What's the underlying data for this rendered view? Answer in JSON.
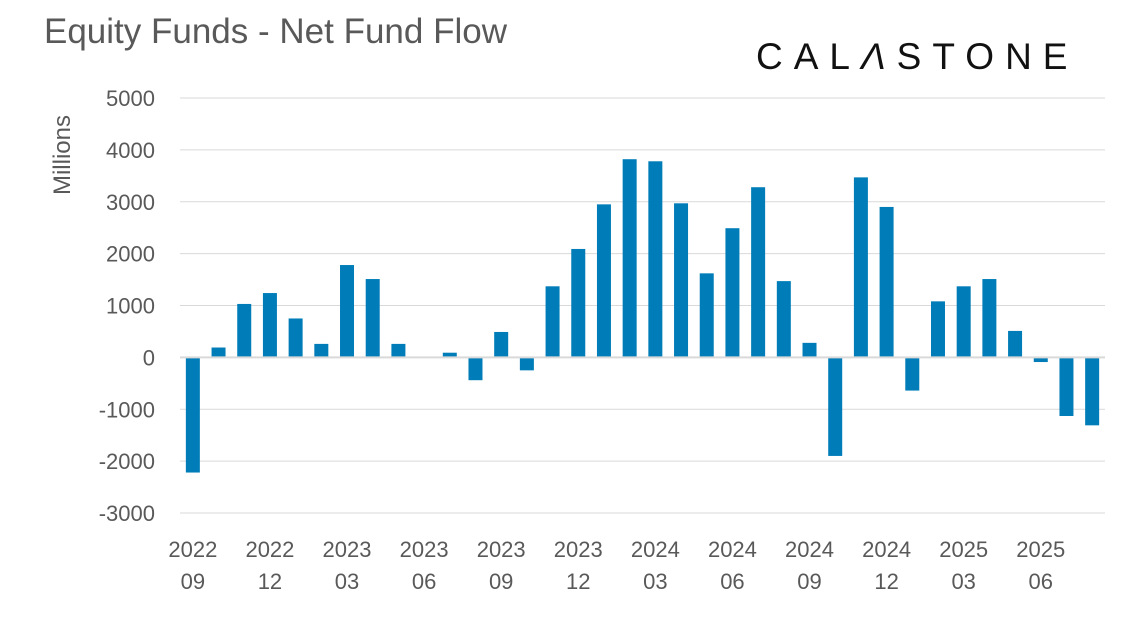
{
  "chart_data": {
    "type": "bar",
    "title": "Equity Funds - Net Fund Flow",
    "ylabel": "Millions",
    "xlabel": "",
    "ylim": [
      -3000,
      5000
    ],
    "yticks": [
      5000,
      4000,
      3000,
      2000,
      1000,
      0,
      -1000,
      -2000,
      -3000
    ],
    "grid": true,
    "bar_color": "#007DB8",
    "categories": [
      "2022-09",
      "2022-10",
      "2022-11",
      "2022-12",
      "2023-01",
      "2023-02",
      "2023-03",
      "2023-04",
      "2023-05",
      "2023-06",
      "2023-07",
      "2023-08",
      "2023-09",
      "2023-10",
      "2023-11",
      "2023-12",
      "2024-01",
      "2024-02",
      "2024-03",
      "2024-04",
      "2024-05",
      "2024-06",
      "2024-07",
      "2024-08",
      "2024-09",
      "2024-10",
      "2024-11",
      "2024-12",
      "2025-01",
      "2025-02",
      "2025-03",
      "2025-04",
      "2025-05",
      "2025-06",
      "2025-07",
      "2025-08"
    ],
    "values": [
      -2220,
      190,
      1030,
      1240,
      750,
      260,
      1780,
      1510,
      260,
      10,
      90,
      -440,
      490,
      -250,
      1370,
      2090,
      2950,
      3820,
      3780,
      2970,
      1620,
      2490,
      3280,
      1470,
      280,
      -1900,
      3470,
      2900,
      -640,
      1080,
      1370,
      1510,
      510,
      -90,
      -1130,
      -1310
    ],
    "xtick_labels": [
      {
        "year": "2022",
        "month": "09"
      },
      {
        "year": "2022",
        "month": "12"
      },
      {
        "year": "2023",
        "month": "03"
      },
      {
        "year": "2023",
        "month": "06"
      },
      {
        "year": "2023",
        "month": "09"
      },
      {
        "year": "2023",
        "month": "12"
      },
      {
        "year": "2024",
        "month": "03"
      },
      {
        "year": "2024",
        "month": "06"
      },
      {
        "year": "2024",
        "month": "09"
      },
      {
        "year": "2024",
        "month": "12"
      },
      {
        "year": "2025",
        "month": "03"
      },
      {
        "year": "2025",
        "month": "06"
      }
    ]
  },
  "logo": "CALASTONE"
}
